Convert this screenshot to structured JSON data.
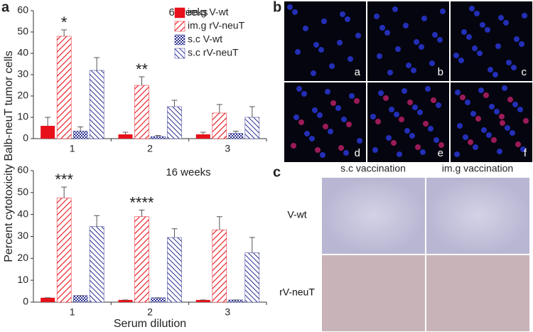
{
  "chart_data": [
    {
      "type": "bar",
      "title": "6 weeks",
      "y_label": "Percent cytotoxicity Balb-neuT tumor cells",
      "categories": [
        "1",
        "2",
        "3"
      ],
      "ylim": [
        0,
        60
      ],
      "yticks": [
        0,
        10,
        20,
        30,
        40,
        50,
        60
      ],
      "series": [
        {
          "name": "im.g V-wt",
          "color": "#e8101a",
          "pattern": "solid",
          "values": [
            6,
            2,
            2
          ],
          "errors": [
            4,
            1,
            1
          ]
        },
        {
          "name": "im.g rV-neuT",
          "color": "#e8101a",
          "pattern": "hatch",
          "values": [
            48,
            25,
            12
          ],
          "errors": [
            3,
            4,
            4
          ]
        },
        {
          "name": "s.c V-wt",
          "color": "#2b2f8f",
          "pattern": "checker",
          "values": [
            3.5,
            1,
            2.5
          ],
          "errors": [
            2,
            0.5,
            1
          ]
        },
        {
          "name": "s.c rV-neuT",
          "color": "#2b2f8f",
          "pattern": "diagonal",
          "values": [
            32,
            15,
            10
          ],
          "errors": [
            6,
            3,
            5
          ]
        }
      ],
      "annotations": [
        {
          "text": "*",
          "category": "1"
        },
        {
          "text": "**",
          "category": "2"
        }
      ]
    },
    {
      "type": "bar",
      "title": "16 weeks",
      "x_label": "Serum dilution",
      "categories": [
        "1",
        "2",
        "3"
      ],
      "ylim": [
        0,
        60
      ],
      "yticks": [
        0,
        10,
        20,
        30,
        40,
        50,
        60
      ],
      "series": [
        {
          "color": "#e8101a",
          "pattern": "solid",
          "values": [
            2,
            1,
            1
          ],
          "errors": [
            0,
            0,
            0
          ]
        },
        {
          "color": "#e8101a",
          "pattern": "hatch",
          "values": [
            47.5,
            39,
            33
          ],
          "errors": [
            5,
            3,
            6
          ]
        },
        {
          "color": "#2b2f8f",
          "pattern": "checker",
          "values": [
            3,
            2,
            1
          ],
          "errors": [
            0,
            0,
            0
          ]
        },
        {
          "color": "#2b2f8f",
          "pattern": "diagonal",
          "values": [
            34.5,
            29.5,
            22.5
          ],
          "errors": [
            5,
            4,
            7
          ]
        }
      ],
      "annotations": [
        {
          "text": "***",
          "category": "1"
        },
        {
          "text": "****",
          "category": "2"
        }
      ]
    }
  ],
  "panels": {
    "a": "a",
    "b": "b",
    "c": "c",
    "b_images": [
      "a",
      "b",
      "c",
      "d",
      "e",
      "f"
    ],
    "c_columns": [
      "s.c vaccination",
      "im.g vaccination"
    ],
    "c_rows": [
      "V-wt",
      "rV-neuT"
    ]
  }
}
